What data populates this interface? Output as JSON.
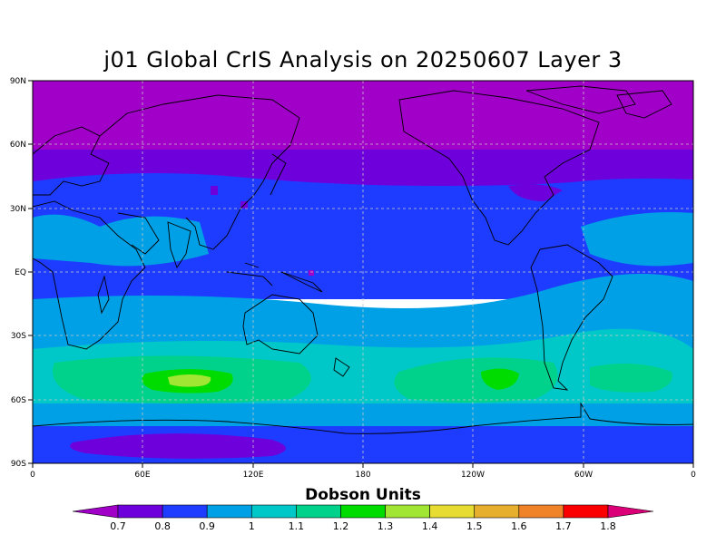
{
  "title": "j01 Global CrIS Analysis on 20250607 Layer 3",
  "map": {
    "lat_labels": [
      "90N",
      "60N",
      "30N",
      "EQ",
      "30S",
      "60S",
      "90S"
    ],
    "lon_labels": [
      "0",
      "60E",
      "120E",
      "180",
      "120W",
      "60W",
      "0"
    ],
    "grid": true
  },
  "colorbar": {
    "title": "Dobson Units",
    "ticks": [
      "0.7",
      "0.8",
      "0.9",
      "1",
      "1.1",
      "1.2",
      "1.3",
      "1.4",
      "1.5",
      "1.6",
      "1.7",
      "1.8"
    ],
    "colors": [
      "#a000c8",
      "#6e00dc",
      "#1e3cff",
      "#00a0e6",
      "#00c8c8",
      "#00d28c",
      "#00dc00",
      "#a0e632",
      "#e6dc32",
      "#e6af2d",
      "#f08228",
      "#fa0000",
      "#dc0078"
    ]
  },
  "chart_data": {
    "type": "heatmap",
    "title": "j01 Global CrIS Analysis on 20250607 Layer 3",
    "units": "Dobson Units",
    "xlabel": "",
    "ylabel": "",
    "x_ticks": [
      "0",
      "60E",
      "120E",
      "180",
      "120W",
      "60W",
      "0"
    ],
    "y_ticks": [
      "90N",
      "60N",
      "30N",
      "EQ",
      "30S",
      "60S",
      "90S"
    ],
    "levels": [
      0.7,
      0.8,
      0.9,
      1.0,
      1.1,
      1.2,
      1.3,
      1.4,
      1.5,
      1.6,
      1.7,
      1.8
    ],
    "zonal_bands": [
      {
        "lat_range": [
          "90N",
          "60N"
        ],
        "value_range": [
          0.7,
          0.8
        ]
      },
      {
        "lat_range": [
          "60N",
          "35N"
        ],
        "value_range": [
          0.8,
          0.9
        ]
      },
      {
        "lat_range": [
          "35N",
          "20S"
        ],
        "value_range": [
          0.9,
          1.0
        ]
      },
      {
        "lat_range": [
          "20S",
          "40S"
        ],
        "value_range": [
          1.0,
          1.1
        ]
      },
      {
        "lat_range": [
          "40S",
          "60S"
        ],
        "value_range": [
          1.1,
          1.3
        ]
      },
      {
        "lat_range": [
          "60S",
          "70S"
        ],
        "value_range": [
          1.0,
          1.1
        ]
      },
      {
        "lat_range": [
          "70S",
          "90S"
        ],
        "value_range": [
          0.8,
          0.9
        ]
      }
    ],
    "maxima": [
      {
        "lon": "85E",
        "lat": "50S",
        "value_range": [
          1.3,
          1.4
        ]
      },
      {
        "lon": "130W",
        "lat": "48S",
        "value_range": [
          1.2,
          1.3
        ]
      }
    ]
  }
}
